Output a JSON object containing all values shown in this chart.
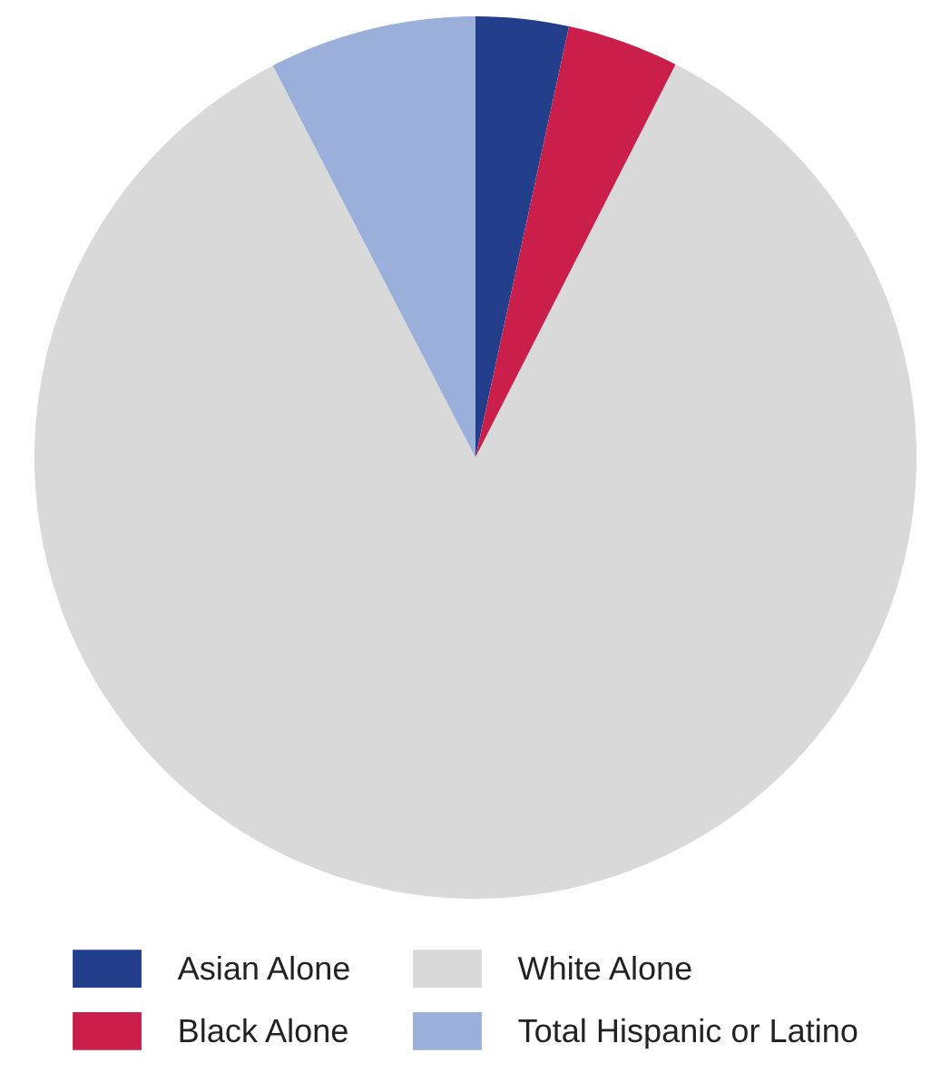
{
  "chart_data": {
    "type": "pie",
    "categories": [
      "Asian Alone",
      "Black Alone",
      "White Alone",
      "Total Hispanic or Latino"
    ],
    "values": [
      3.4,
      4.1,
      84.9,
      7.6
    ],
    "colors": [
      "#233f8c",
      "#c91f4a",
      "#d9d9d9",
      "#9bafdb"
    ],
    "legend": "bottom"
  }
}
